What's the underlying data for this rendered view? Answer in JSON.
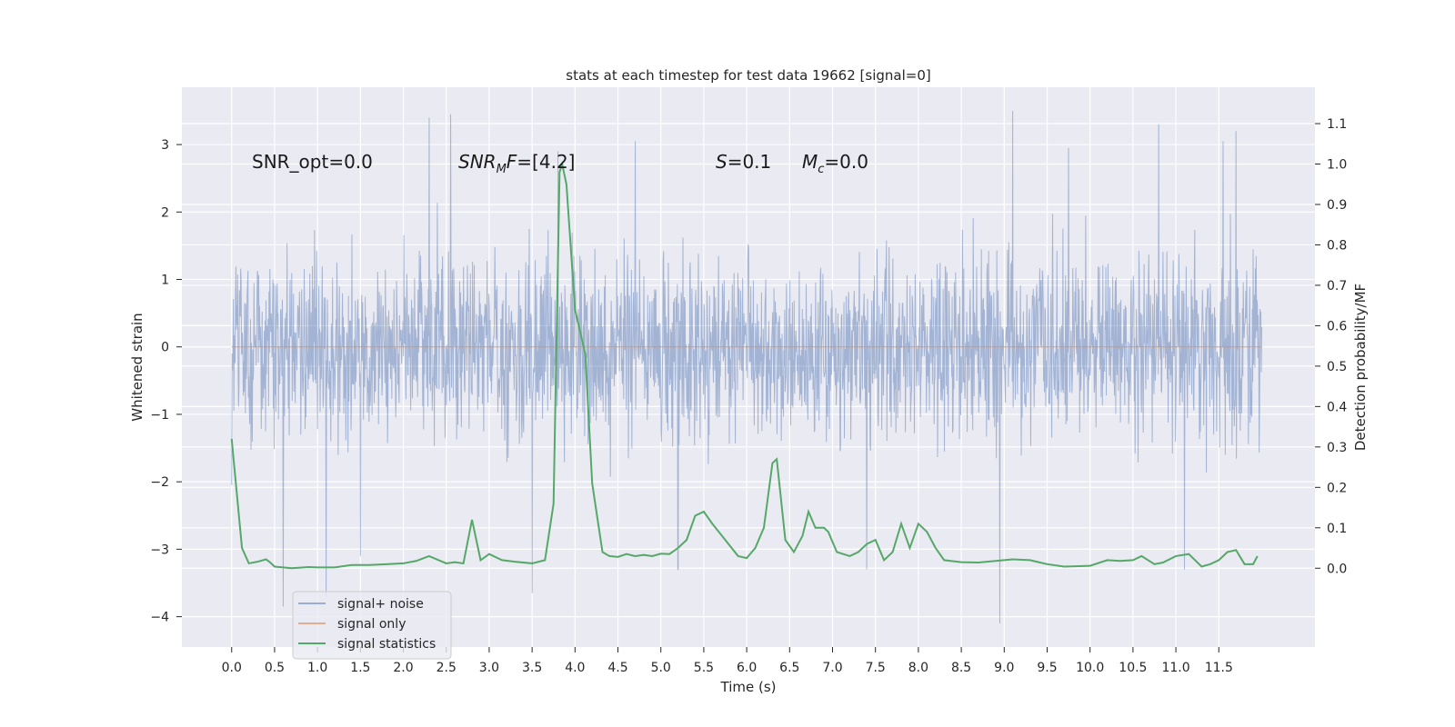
{
  "chart_data": {
    "type": "line",
    "title": "stats at each timestep for test data 19662 [signal=0]",
    "xlabel": "Time (s)",
    "ylabel": "Whitened strain",
    "ylabel_right": "Detection probability/MF",
    "xlim": [
      -0.58,
      12.62
    ],
    "ylim_left": [
      -4.45,
      3.85
    ],
    "ylim_right": [
      -0.195,
      1.19
    ],
    "x_ticks": [
      "0.0",
      "0.5",
      "1.0",
      "1.5",
      "2.0",
      "2.5",
      "3.0",
      "3.5",
      "4.0",
      "4.5",
      "5.0",
      "5.5",
      "6.0",
      "6.5",
      "7.0",
      "7.5",
      "8.0",
      "8.5",
      "9.0",
      "9.5",
      "10.0",
      "10.5",
      "11.0",
      "11.5"
    ],
    "y_ticks_left": [
      "−4",
      "−3",
      "−2",
      "−1",
      "0",
      "1",
      "2",
      "3"
    ],
    "y_ticks_right": [
      "0.0",
      "0.1",
      "0.2",
      "0.3",
      "0.4",
      "0.5",
      "0.6",
      "0.7",
      "0.8",
      "0.9",
      "1.0",
      "1.1"
    ],
    "grid": true,
    "annotations": [
      "SNR_opt=0.0",
      "SNR_MF=[4.2]",
      "S=0.1",
      "M_c=0.0"
    ],
    "legend": {
      "placement": "lower-left",
      "entries": [
        "signal+ noise",
        "signal only",
        "signal statistics"
      ]
    },
    "colors": {
      "noise": "#4c72b0",
      "signal_only": "#dd8452",
      "statistics": "#55a868",
      "background": "#eaeaf2",
      "grid": "#ffffff"
    },
    "series": [
      {
        "name": "signal+ noise",
        "axis": "left",
        "t_range": [
          0.0,
          12.0
        ],
        "typical_range": [
          -1.5,
          1.5
        ],
        "values_peak_samples": [
          [
            0.0,
            -2.05
          ],
          [
            0.6,
            -3.85
          ],
          [
            1.1,
            -3.7
          ],
          [
            1.5,
            -3.1
          ],
          [
            2.3,
            3.4
          ],
          [
            2.55,
            3.45
          ],
          [
            3.5,
            -3.65
          ],
          [
            3.8,
            2.9
          ],
          [
            4.7,
            3.05
          ],
          [
            5.2,
            -3.3
          ],
          [
            7.4,
            -3.3
          ],
          [
            8.95,
            -4.1
          ],
          [
            9.1,
            3.5
          ],
          [
            10.8,
            3.3
          ],
          [
            11.7,
            3.2
          ],
          [
            11.1,
            -3.3
          ],
          [
            9.75,
            2.95
          ],
          [
            11.55,
            3.05
          ]
        ]
      },
      {
        "name": "signal only",
        "axis": "left",
        "x": [
          0.0,
          12.0
        ],
        "y": [
          0.0,
          0.0
        ]
      },
      {
        "name": "signal statistics",
        "axis": "right",
        "x": [
          0.0,
          0.12,
          0.2,
          0.3,
          0.4,
          0.45,
          0.5,
          0.7,
          0.9,
          1.0,
          1.2,
          1.4,
          1.6,
          1.8,
          2.0,
          2.15,
          2.3,
          2.5,
          2.6,
          2.7,
          2.8,
          2.9,
          3.0,
          3.15,
          3.3,
          3.5,
          3.65,
          3.75,
          3.82,
          3.85,
          3.9,
          4.0,
          4.12,
          4.2,
          4.32,
          4.4,
          4.5,
          4.6,
          4.7,
          4.8,
          4.9,
          5.0,
          5.1,
          5.2,
          5.3,
          5.4,
          5.5,
          5.6,
          5.75,
          5.9,
          6.0,
          6.1,
          6.2,
          6.3,
          6.35,
          6.45,
          6.55,
          6.65,
          6.72,
          6.8,
          6.9,
          6.95,
          7.05,
          7.2,
          7.3,
          7.4,
          7.5,
          7.6,
          7.7,
          7.8,
          7.9,
          8.0,
          8.1,
          8.2,
          8.3,
          8.5,
          8.7,
          8.9,
          9.0,
          9.1,
          9.3,
          9.5,
          9.7,
          10.0,
          10.2,
          10.35,
          10.5,
          10.6,
          10.75,
          10.85,
          11.0,
          11.15,
          11.3,
          11.4,
          11.5,
          11.6,
          11.7,
          11.8,
          11.9,
          11.95
        ],
        "y": [
          0.32,
          0.05,
          0.012,
          0.016,
          0.022,
          0.014,
          0.004,
          0.0,
          0.003,
          0.002,
          0.002,
          0.008,
          0.008,
          0.01,
          0.012,
          0.018,
          0.03,
          0.012,
          0.015,
          0.012,
          0.12,
          0.02,
          0.035,
          0.02,
          0.016,
          0.012,
          0.02,
          0.16,
          0.98,
          1.0,
          0.95,
          0.64,
          0.53,
          0.21,
          0.04,
          0.03,
          0.028,
          0.035,
          0.03,
          0.033,
          0.03,
          0.036,
          0.035,
          0.05,
          0.07,
          0.13,
          0.14,
          0.11,
          0.07,
          0.03,
          0.025,
          0.05,
          0.1,
          0.26,
          0.27,
          0.07,
          0.04,
          0.08,
          0.14,
          0.1,
          0.1,
          0.09,
          0.04,
          0.03,
          0.04,
          0.06,
          0.07,
          0.02,
          0.04,
          0.11,
          0.05,
          0.11,
          0.09,
          0.05,
          0.02,
          0.015,
          0.014,
          0.018,
          0.02,
          0.022,
          0.02,
          0.01,
          0.004,
          0.006,
          0.02,
          0.018,
          0.02,
          0.03,
          0.01,
          0.014,
          0.03,
          0.035,
          0.004,
          0.01,
          0.02,
          0.04,
          0.045,
          0.01,
          0.01,
          0.03
        ]
      }
    ]
  }
}
